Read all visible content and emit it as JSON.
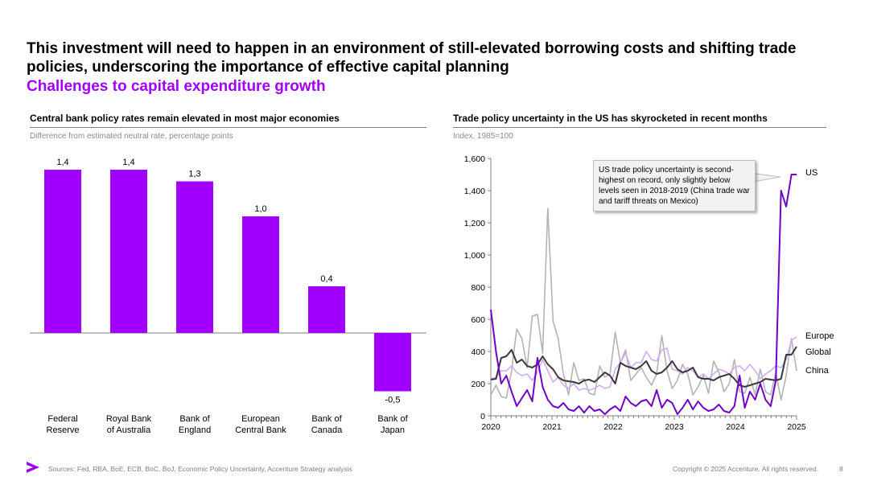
{
  "page": {
    "headline": "This investment will need to happen in an environment of still-elevated borrowing costs and shifting trade policies, underscoring the importance of effective capital planning",
    "subheadline": "Challenges to capital expenditure growth",
    "footer": {
      "sources": "Sources: Fed, RBA, BoE, ECB, BoC, BoJ, Economic Policy Uncertainty, Accenture Strategy analysis",
      "copyright": "Copyright © 2025 Accenture. All rights reserved.",
      "page_number": "8"
    },
    "brand_color": "#a100ff"
  },
  "chart_data": [
    {
      "type": "bar",
      "title": "Central bank policy rates remain elevated in most major economies",
      "subtitle": "Difference from estimated neutral rate, percentage points",
      "categories": [
        [
          "Federal",
          "Reserve"
        ],
        [
          "Royal Bank",
          "of Australia"
        ],
        [
          "Bank of",
          "England"
        ],
        [
          "European",
          "Central Bank"
        ],
        [
          "Bank of",
          "Canada"
        ],
        [
          "Bank of",
          "Japan"
        ]
      ],
      "values": [
        1.4,
        1.4,
        1.3,
        1.0,
        0.4,
        -0.5
      ],
      "value_labels": [
        "1,4",
        "1,4",
        "1,3",
        "1,0",
        "0,4",
        "-0,5"
      ],
      "ylim": [
        -0.55,
        1.5
      ],
      "color": "#a100ff",
      "grid": false
    },
    {
      "type": "line",
      "title": "Trade policy uncertainty in the US has skyrocketed in recent months",
      "subtitle": "Index, 1985=100",
      "x_range": [
        2020,
        2025
      ],
      "x_ticks": [
        "2020",
        "2021",
        "2022",
        "2023",
        "2024",
        "2025"
      ],
      "ylim": [
        0,
        1600
      ],
      "y_ticks": [
        "0",
        "200",
        "400",
        "600",
        "800",
        "1,000",
        "1,200",
        "1,400",
        "1,600"
      ],
      "annotation": "US trade policy uncertainty is second-highest on record, only slightly below levels seen in 2018-2019 (China trade war and tariff threats on Mexico)",
      "series": [
        {
          "name": "China",
          "color": "#b3b3b3",
          "values": [
            130,
            190,
            120,
            110,
            280,
            540,
            480,
            300,
            620,
            630,
            390,
            1290,
            590,
            480,
            260,
            130,
            330,
            220,
            230,
            140,
            130,
            310,
            240,
            260,
            520,
            330,
            410,
            220,
            260,
            300,
            240,
            190,
            260,
            500,
            280,
            170,
            220,
            320,
            260,
            130,
            180,
            250,
            140,
            340,
            270,
            150,
            200,
            350,
            150,
            140,
            240,
            130,
            290,
            150,
            130,
            270,
            100,
            250,
            480,
            280
          ]
        },
        {
          "name": "Europe",
          "color": "#d2aaf5",
          "values": [
            230,
            240,
            280,
            280,
            310,
            270,
            250,
            260,
            220,
            270,
            350,
            280,
            210,
            240,
            190,
            170,
            200,
            160,
            170,
            160,
            170,
            190,
            170,
            180,
            290,
            330,
            390,
            300,
            330,
            330,
            400,
            350,
            340,
            410,
            420,
            290,
            280,
            260,
            300,
            280,
            240,
            260,
            230,
            260,
            290,
            280,
            260,
            300,
            310,
            280,
            320,
            280,
            230,
            260,
            280,
            310,
            300,
            350,
            470,
            490
          ]
        },
        {
          "name": "Global",
          "color": "#3a3a3a",
          "values": [
            225,
            230,
            360,
            370,
            410,
            330,
            350,
            310,
            300,
            320,
            370,
            320,
            290,
            240,
            220,
            215,
            210,
            200,
            220,
            225,
            210,
            240,
            270,
            250,
            200,
            330,
            310,
            300,
            290,
            310,
            340,
            280,
            260,
            270,
            300,
            340,
            290,
            270,
            280,
            300,
            240,
            230,
            230,
            220,
            240,
            250,
            260,
            230,
            190,
            180,
            190,
            200,
            210,
            230,
            225,
            220,
            230,
            380,
            380,
            430
          ]
        },
        {
          "name": "US",
          "color": "#7000c8",
          "values": [
            660,
            400,
            200,
            250,
            150,
            60,
            110,
            160,
            90,
            360,
            180,
            100,
            60,
            50,
            80,
            40,
            30,
            60,
            20,
            60,
            30,
            40,
            10,
            40,
            60,
            30,
            120,
            80,
            60,
            90,
            100,
            60,
            160,
            50,
            100,
            80,
            10,
            50,
            100,
            40,
            90,
            50,
            30,
            40,
            70,
            30,
            20,
            60,
            250,
            50,
            150,
            100,
            200,
            100,
            60,
            220,
            1400,
            1300,
            1500,
            1500
          ]
        }
      ]
    }
  ]
}
